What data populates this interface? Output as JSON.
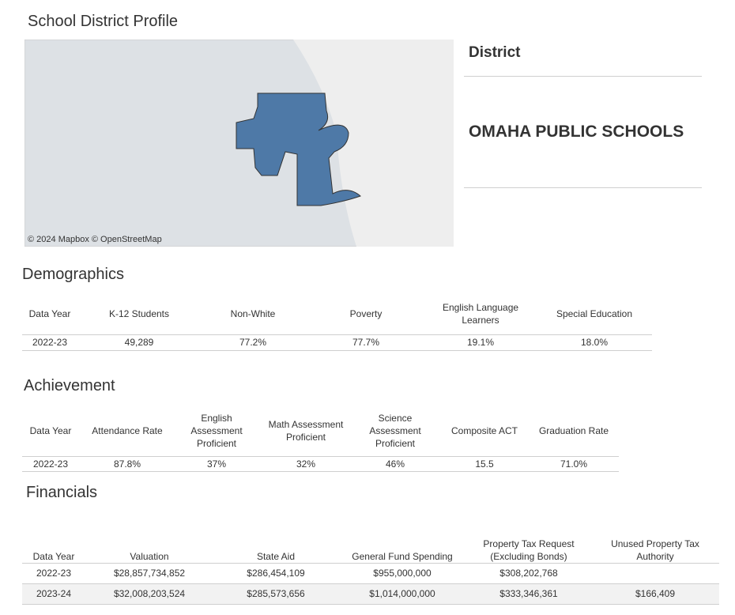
{
  "page_title": "School District Profile",
  "map": {
    "attribution": "© 2024 Mapbox © OpenStreetMap"
  },
  "district": {
    "label": "District",
    "name": "OMAHA PUBLIC SCHOOLS"
  },
  "demographics": {
    "title": "Demographics",
    "columns": [
      "Data Year",
      "K-12 Students",
      "Non-White",
      "Poverty",
      "English Language Learners",
      "Special Education"
    ],
    "rows": [
      [
        "2022-23",
        "49,289",
        "77.2%",
        "77.7%",
        "19.1%",
        "18.0%"
      ]
    ]
  },
  "achievement": {
    "title": "Achievement",
    "columns": [
      "Data Year",
      "Attendance Rate",
      "English Assessment Proficient",
      "Math Assessment Proficient",
      "Science Assessment Proficient",
      "Composite ACT",
      "Graduation Rate"
    ],
    "rows": [
      [
        "2022-23",
        "87.8%",
        "37%",
        "32%",
        "46%",
        "15.5",
        "71.0%"
      ]
    ]
  },
  "financials": {
    "title": "Financials",
    "columns": [
      "Data Year",
      "Valuation",
      "State Aid",
      "General Fund Spending",
      "Property Tax Request (Excluding Bonds)",
      "Unused Property Tax Authority"
    ],
    "rows": [
      [
        "2022-23",
        "$28,857,734,852",
        "$286,454,109",
        "$955,000,000",
        "$308,202,768",
        null
      ],
      [
        "2023-24",
        "$32,008,203,524",
        "$285,573,656",
        "$1,014,000,000",
        "$333,346,361",
        "$166,409"
      ]
    ]
  }
}
